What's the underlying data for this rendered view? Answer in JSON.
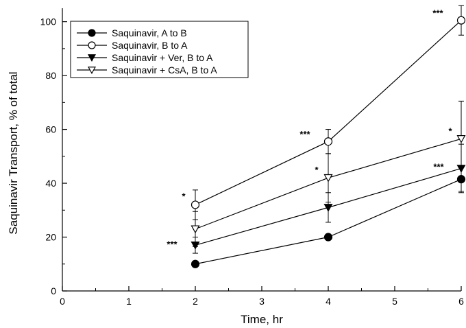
{
  "chart_data": {
    "type": "line",
    "title": "",
    "xlabel": "Time, hr",
    "ylabel": "Saquinavir Transport, % of total",
    "xlim": [
      0,
      6
    ],
    "ylim": [
      0,
      105
    ],
    "x_ticks": [
      0,
      1,
      2,
      3,
      4,
      5,
      6
    ],
    "y_ticks": [
      0,
      20,
      40,
      60,
      80,
      100
    ],
    "grid": false,
    "legend_position": "top-left",
    "series": [
      {
        "name": "Saquinavir, A to B",
        "marker": "circle-filled",
        "x": [
          2,
          4,
          6
        ],
        "y": [
          10,
          20,
          41.5
        ],
        "err": [
          0,
          0,
          4.5
        ],
        "significance": [
          "",
          "",
          ""
        ]
      },
      {
        "name": "Saquinavir, B to A",
        "marker": "circle-open",
        "x": [
          2,
          4,
          6
        ],
        "y": [
          32,
          55.5,
          100.5
        ],
        "err": [
          5.5,
          4.5,
          5.5
        ],
        "significance": [
          "*",
          "***",
          "***"
        ]
      },
      {
        "name": "Saquinavir + Ver, B to A",
        "marker": "triangle-filled",
        "x": [
          2,
          4,
          6
        ],
        "y": [
          17,
          31,
          45.5
        ],
        "err": [
          3,
          5.5,
          9
        ],
        "significance": [
          "***",
          "",
          "***"
        ]
      },
      {
        "name": "Saquinavir + CsA, B to A",
        "marker": "triangle-open",
        "x": [
          2,
          4,
          6
        ],
        "y": [
          23,
          42,
          56.5
        ],
        "err": [
          6.5,
          9,
          14
        ],
        "significance": [
          "",
          "*",
          "*"
        ]
      }
    ]
  }
}
